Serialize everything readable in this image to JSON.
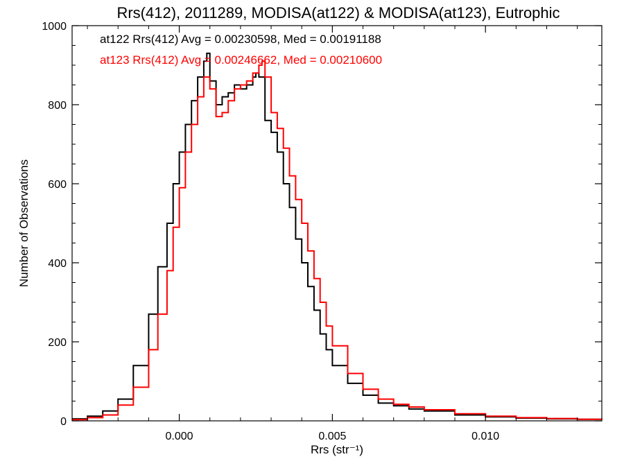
{
  "chart_data": {
    "type": "histogram",
    "title": "Rrs(412), 2011289, MODISA(at122) & MODISA(at123), Eutrophic",
    "xlabel": "Rrs (str⁻¹)",
    "ylabel": "Number of Observations",
    "xlim": [
      -0.0035,
      0.0138
    ],
    "ylim": [
      0,
      1000
    ],
    "xticks": [
      {
        "value": 0.0,
        "label": "0.000"
      },
      {
        "value": 0.005,
        "label": "0.005"
      },
      {
        "value": 0.01,
        "label": "0.010"
      }
    ],
    "yticks": [
      {
        "value": 0,
        "label": "0"
      },
      {
        "value": 200,
        "label": "200"
      },
      {
        "value": 400,
        "label": "400"
      },
      {
        "value": 600,
        "label": "600"
      },
      {
        "value": 800,
        "label": "800"
      },
      {
        "value": 1000,
        "label": "1000"
      }
    ],
    "grid": false,
    "legend_position": "top-left",
    "series": [
      {
        "name": "at122",
        "color": "#000000",
        "label": "at122 Rrs(412) Avg = 0.00230598, Med = 0.00191188",
        "x": [
          -0.0035,
          -0.003,
          -0.0025,
          -0.002,
          -0.0015,
          -0.001,
          -0.0007,
          -0.0004,
          -0.0002,
          0.0,
          0.0002,
          0.0004,
          0.0006,
          0.0008,
          0.0009,
          0.001,
          0.0012,
          0.0014,
          0.0016,
          0.0018,
          0.002,
          0.0022,
          0.0024,
          0.0025,
          0.0026,
          0.0028,
          0.003,
          0.0032,
          0.0034,
          0.0036,
          0.0038,
          0.004,
          0.0042,
          0.0044,
          0.0046,
          0.0048,
          0.005,
          0.0055,
          0.006,
          0.0065,
          0.007,
          0.0075,
          0.008,
          0.009,
          0.01,
          0.011,
          0.012,
          0.013,
          0.0138
        ],
        "y": [
          5,
          12,
          25,
          55,
          140,
          270,
          390,
          500,
          600,
          680,
          750,
          810,
          870,
          910,
          930,
          860,
          800,
          820,
          830,
          850,
          840,
          850,
          870,
          880,
          870,
          760,
          730,
          680,
          600,
          540,
          460,
          400,
          340,
          280,
          220,
          180,
          140,
          95,
          65,
          45,
          38,
          30,
          25,
          15,
          10,
          7,
          5,
          4,
          3
        ]
      },
      {
        "name": "at123",
        "color": "#ff0000",
        "label": "at123 Rrs(412) Avg = 0.00246662, Med = 0.00210600",
        "x": [
          -0.0035,
          -0.003,
          -0.0025,
          -0.002,
          -0.0015,
          -0.001,
          -0.0007,
          -0.0004,
          -0.0002,
          0.0,
          0.0002,
          0.0004,
          0.0006,
          0.0008,
          0.001,
          0.0012,
          0.0014,
          0.0016,
          0.0018,
          0.002,
          0.0022,
          0.0024,
          0.0026,
          0.0027,
          0.0028,
          0.003,
          0.0032,
          0.0034,
          0.0036,
          0.0038,
          0.004,
          0.0042,
          0.0044,
          0.0046,
          0.0048,
          0.005,
          0.0055,
          0.006,
          0.0065,
          0.007,
          0.0075,
          0.008,
          0.009,
          0.01,
          0.011,
          0.012,
          0.013,
          0.0138
        ],
        "y": [
          3,
          8,
          15,
          40,
          85,
          180,
          270,
          380,
          490,
          590,
          680,
          750,
          820,
          870,
          840,
          770,
          780,
          810,
          840,
          850,
          860,
          880,
          900,
          910,
          870,
          780,
          740,
          690,
          620,
          560,
          500,
          430,
          360,
          300,
          240,
          190,
          120,
          80,
          55,
          42,
          35,
          28,
          18,
          12,
          8,
          6,
          4,
          3
        ]
      }
    ]
  }
}
